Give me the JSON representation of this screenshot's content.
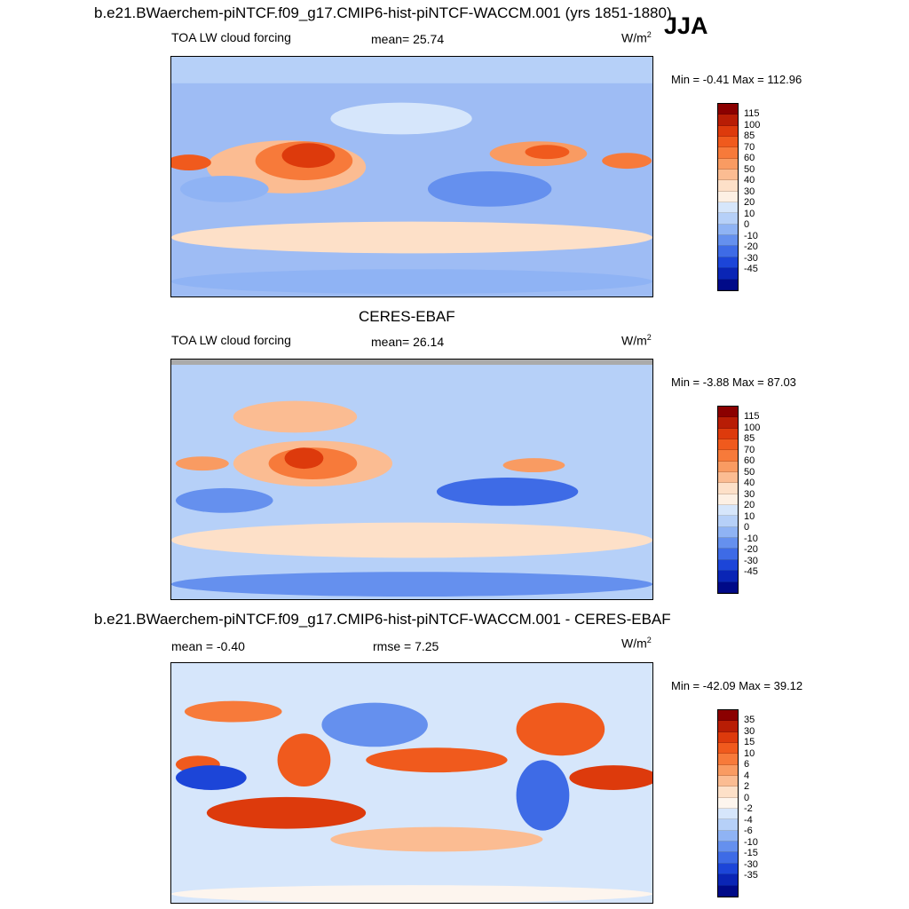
{
  "header": {
    "title": "b.e21.BWaerchem-piNTCF.f09_g17.CMIP6-hist-piNTCF-WACCM.001 (yrs 1851-1880)",
    "season": "JJA"
  },
  "panels": [
    {
      "subtitle": "",
      "variable": "TOA LW cloud forcing",
      "mean": "mean=  25.74",
      "units": "W/m",
      "units_sup": "2",
      "minmax": "Min =  -0.41 Max = 112.96",
      "colorbar": "abs"
    },
    {
      "subtitle": "CERES-EBAF",
      "variable": "TOA LW cloud forcing",
      "mean": "mean=  26.14",
      "units": "W/m",
      "units_sup": "2",
      "minmax": "Min =  -3.88 Max =  87.03",
      "colorbar": "abs"
    },
    {
      "subtitle": "b.e21.BWaerchem-piNTCF.f09_g17.CMIP6-hist-piNTCF-WACCM.001 - CERES-EBAF",
      "variable": "mean =  -0.40",
      "mean": "rmse =   7.25",
      "units": "W/m",
      "units_sup": "2",
      "minmax": "Min = -42.09 Max =  39.12",
      "colorbar": "diff"
    }
  ],
  "colorbars": {
    "abs": {
      "labels": [
        "115",
        "100",
        "85",
        "70",
        "60",
        "50",
        "40",
        "30",
        "20",
        "10",
        "0",
        "-10",
        "-20",
        "-30",
        "-45"
      ],
      "colors": [
        "#8b0000",
        "#b81d05",
        "#dd3a0c",
        "#f05a1d",
        "#f77a3a",
        "#f99b62",
        "#fbbc92",
        "#fde0c8",
        "#fdf0e4",
        "#d6e6fb",
        "#b6d0f8",
        "#8fb3f4",
        "#6590ee",
        "#3e6be6",
        "#1c45d8",
        "#0a25b5",
        "#000a88"
      ]
    },
    "diff": {
      "labels": [
        "35",
        "30",
        "15",
        "10",
        "6",
        "4",
        "2",
        "0",
        "-2",
        "-4",
        "-6",
        "-10",
        "-15",
        "-30",
        "-35"
      ],
      "colors": [
        "#8b0000",
        "#b81d05",
        "#dd3a0c",
        "#f05a1d",
        "#f77a3a",
        "#f99b62",
        "#fbbc92",
        "#fde0c8",
        "#fdf5ee",
        "#d6e6fb",
        "#b6d0f8",
        "#8fb3f4",
        "#6590ee",
        "#3e6be6",
        "#1c45d8",
        "#0a25b5",
        "#000a88"
      ]
    }
  }
}
